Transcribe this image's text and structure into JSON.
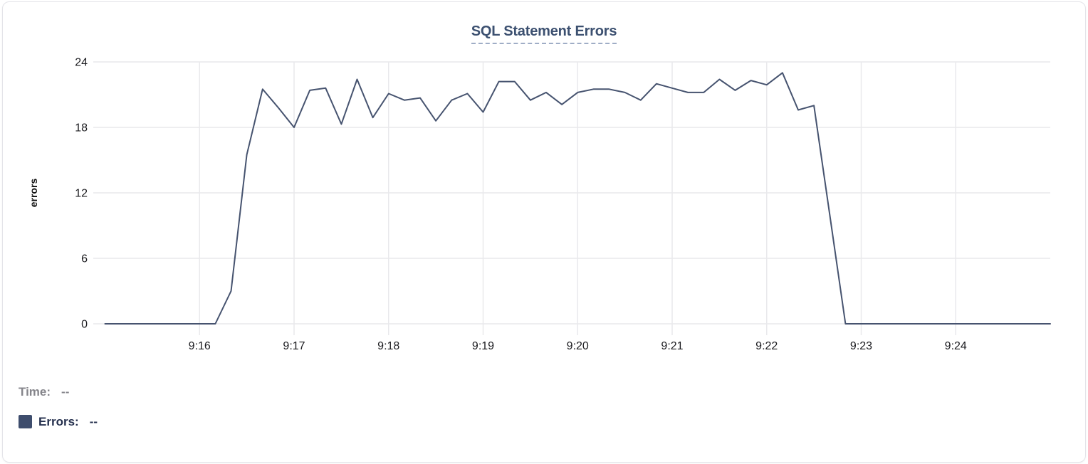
{
  "card": {
    "title": "SQL Statement Errors"
  },
  "colors": {
    "title": "#3C5070",
    "title_underline": "#9FADC6",
    "grid": "#e9e9ec",
    "tick_text": "#1b1b1f",
    "line": "#46536F",
    "legend_time": "#85858B",
    "legend_errors": "#25304E",
    "swatch": "#3E4D6D"
  },
  "legend": {
    "time_label": "Time:",
    "time_value": "--",
    "errors_label": "Errors:",
    "errors_value": "--"
  },
  "chart_data": {
    "type": "line",
    "title": "SQL Statement Errors",
    "xlabel": "",
    "ylabel": "errors",
    "series_name": "Errors",
    "line_color": "#46536F",
    "grid": true,
    "legend_position": "bottom-left",
    "ylim": [
      0,
      24
    ],
    "yticks": [
      0,
      6,
      12,
      18,
      24
    ],
    "xticks": [
      "9:16",
      "9:17",
      "9:18",
      "9:19",
      "9:20",
      "9:21",
      "9:22",
      "9:23",
      "9:24"
    ],
    "x": [
      "9:15:00",
      "9:15:10",
      "9:15:20",
      "9:15:30",
      "9:15:40",
      "9:15:50",
      "9:16:00",
      "9:16:10",
      "9:16:20",
      "9:16:30",
      "9:16:40",
      "9:16:50",
      "9:17:00",
      "9:17:10",
      "9:17:20",
      "9:17:30",
      "9:17:40",
      "9:17:50",
      "9:18:00",
      "9:18:10",
      "9:18:20",
      "9:18:30",
      "9:18:40",
      "9:18:50",
      "9:19:00",
      "9:19:10",
      "9:19:20",
      "9:19:30",
      "9:19:40",
      "9:19:50",
      "9:20:00",
      "9:20:10",
      "9:20:20",
      "9:20:30",
      "9:20:40",
      "9:20:50",
      "9:21:00",
      "9:21:10",
      "9:21:20",
      "9:21:30",
      "9:21:40",
      "9:21:50",
      "9:22:00",
      "9:22:10",
      "9:22:20",
      "9:22:30",
      "9:22:40",
      "9:22:50",
      "9:23:00",
      "9:23:10",
      "9:23:20",
      "9:23:30",
      "9:23:40",
      "9:23:50",
      "9:24:00",
      "9:24:10",
      "9:24:20",
      "9:24:30",
      "9:24:40",
      "9:24:50",
      "9:25:00"
    ],
    "values": [
      0,
      0,
      0,
      0,
      0,
      0,
      0,
      0,
      3,
      15.5,
      21.5,
      19.8,
      18,
      21.4,
      21.6,
      18.3,
      22.4,
      18.9,
      21.1,
      20.5,
      20.7,
      18.6,
      20.5,
      21.1,
      19.4,
      22.2,
      22.2,
      20.5,
      21.2,
      20.1,
      21.2,
      21.5,
      21.5,
      21.2,
      20.5,
      22,
      21.6,
      21.2,
      21.2,
      22.4,
      21.4,
      22.3,
      21.9,
      23,
      19.6,
      20,
      10,
      0,
      0,
      0,
      0,
      0,
      0,
      0,
      0,
      0,
      0,
      0,
      0,
      0,
      0
    ]
  }
}
